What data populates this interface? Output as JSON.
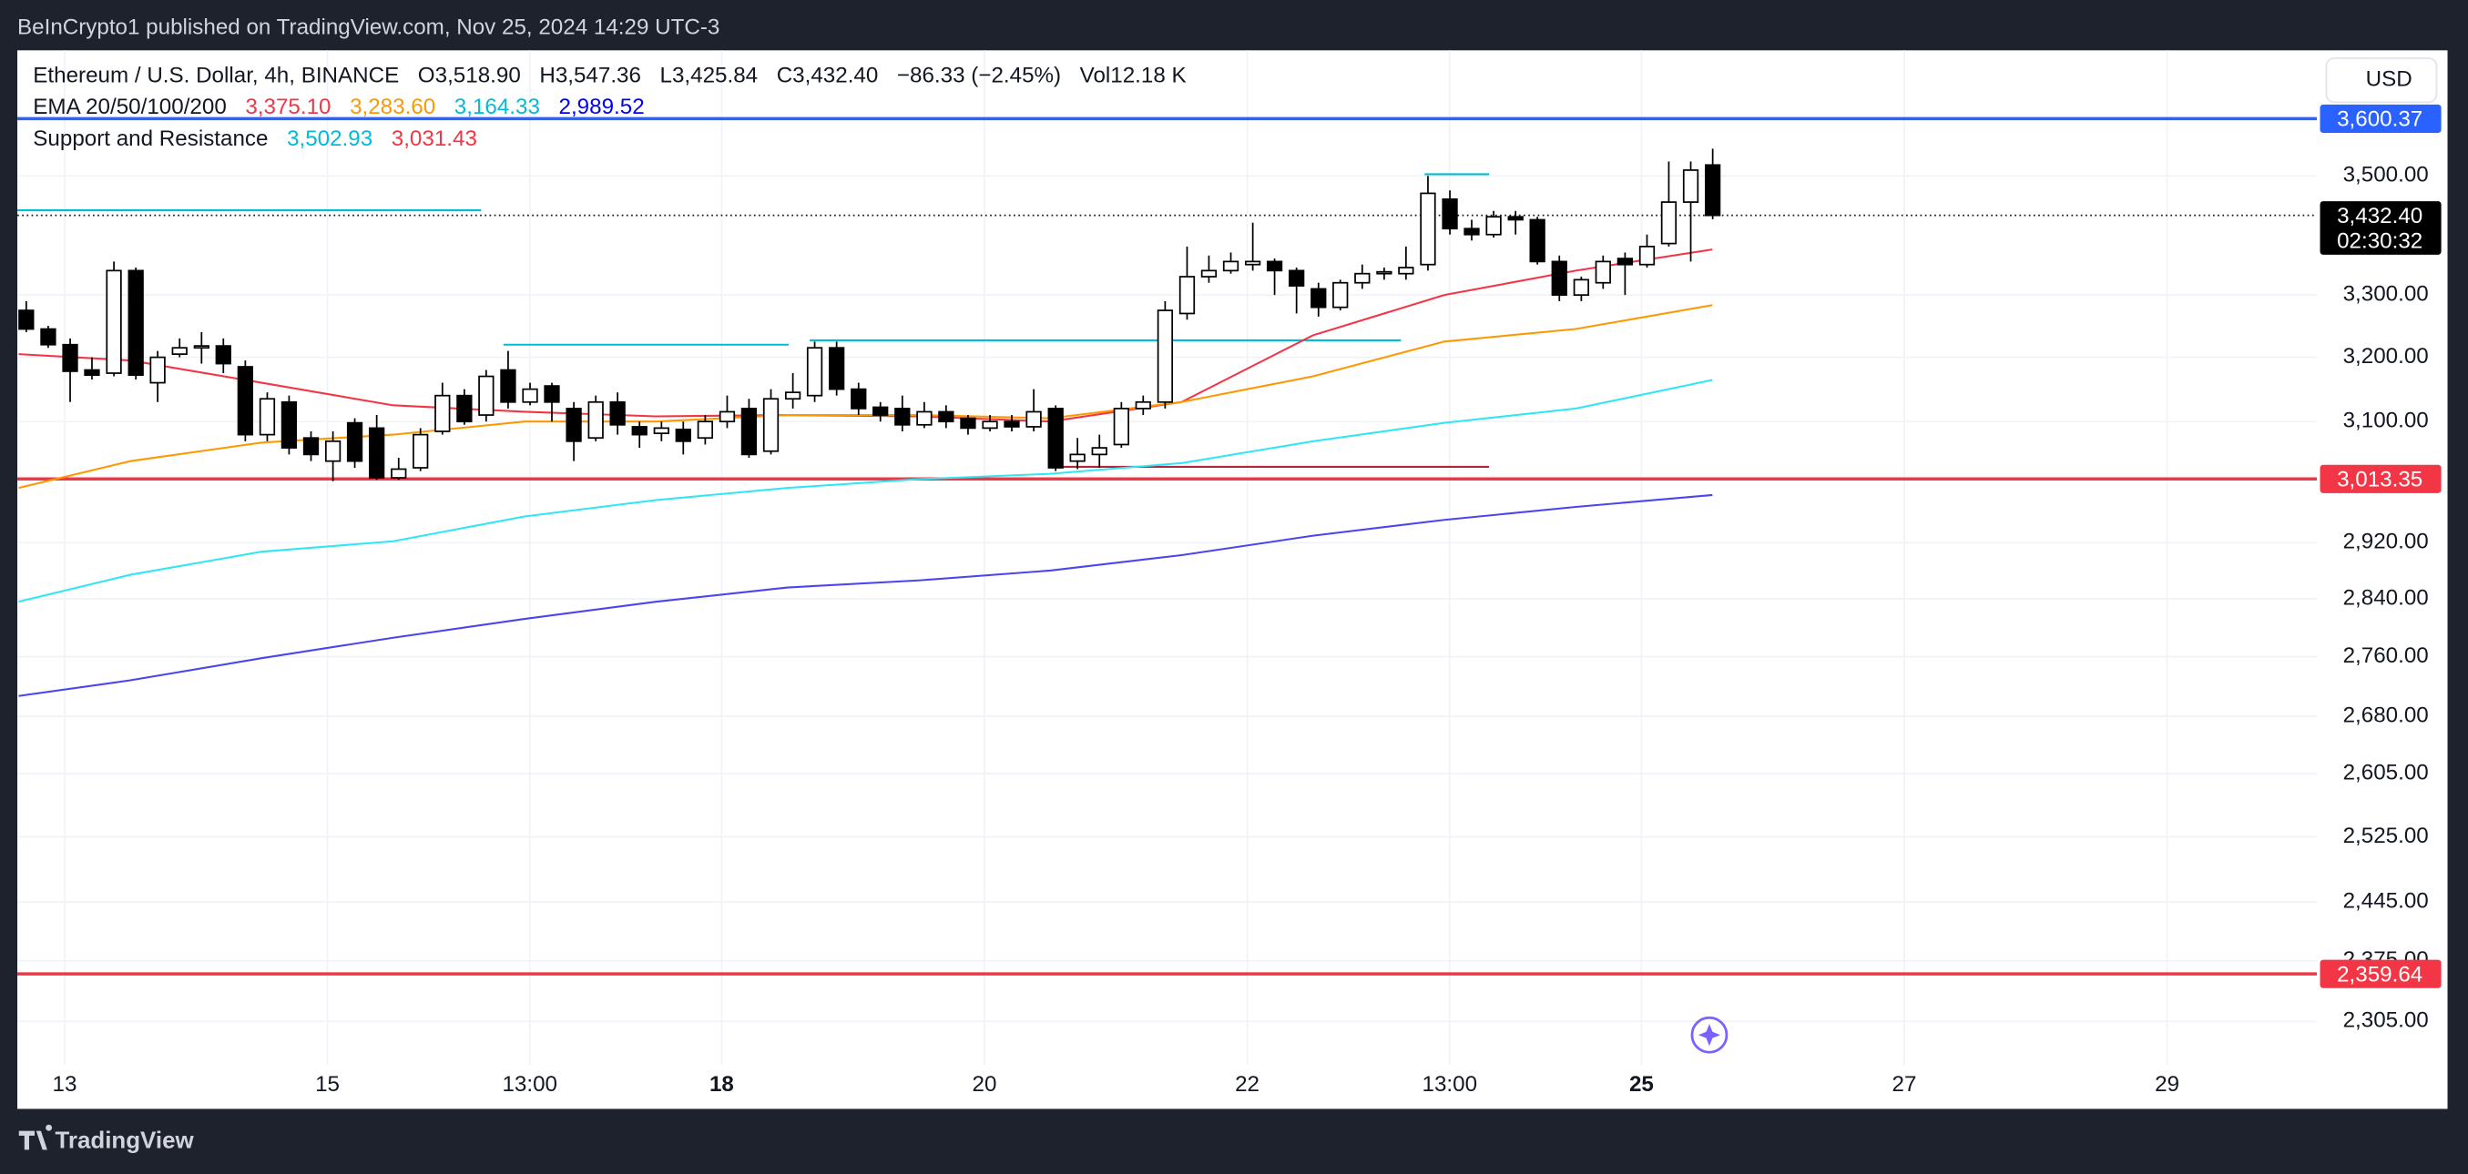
{
  "chart_data": {
    "type": "candlestick",
    "publisher_line": "BeInCrypto1 published on TradingView.com, Nov 25, 2024 14:29 UTC-3",
    "symbol": "Ethereum / U.S. Dollar, 4h, BINANCE",
    "ohlc_legend": [
      {
        "label": "O",
        "value": "3,518.90"
      },
      {
        "label": "H",
        "value": "3,547.36"
      },
      {
        "label": "L",
        "value": "3,425.84"
      },
      {
        "label": "C",
        "value": "3,432.40"
      }
    ],
    "change": "−86.33 (−2.45%)",
    "volume_label": "Vol",
    "volume": "12.18 K",
    "currency": "USD",
    "brand": "TradingView",
    "ema_legend": "EMA 20/50/100/200",
    "sr_legend": "Support and Resistance",
    "log_scale": true,
    "grid": true,
    "up_color": "#ffffff",
    "down_color": "#000000",
    "wick_color": "#000000",
    "xlim": [
      12.64,
      30.14
    ],
    "ylim": [
      2256,
      3724
    ],
    "xticks": [
      13,
      15,
      {
        "value": 16.54,
        "label": "13:00"
      },
      {
        "value": 18,
        "label": "18",
        "bold": true
      },
      20,
      22,
      {
        "value": 23.54,
        "label": "13:00"
      },
      {
        "value": 25,
        "label": "25",
        "bold": true
      },
      27,
      29
    ],
    "yticks": [
      {
        "value": 3500,
        "label": "3,500.00"
      },
      {
        "value": 3300,
        "label": "3,300.00"
      },
      {
        "value": 3200,
        "label": "3,200.00"
      },
      {
        "value": 3100,
        "label": "3,100.00"
      },
      {
        "value": 2920,
        "label": "2,920.00"
      },
      {
        "value": 2840,
        "label": "2,840.00"
      },
      {
        "value": 2760,
        "label": "2,760.00"
      },
      {
        "value": 2680,
        "label": "2,680.00"
      },
      {
        "value": 2605,
        "label": "2,605.00"
      },
      {
        "value": 2525,
        "label": "2,525.00"
      },
      {
        "value": 2445,
        "label": "2,445.00"
      },
      {
        "value": 2375,
        "label": "2,375.00"
      },
      {
        "value": 2305,
        "label": "2,305.00"
      }
    ],
    "candles": {
      "x": [
        12.708,
        12.875,
        13.042,
        13.208,
        13.375,
        13.542,
        13.708,
        13.875,
        14.042,
        14.208,
        14.375,
        14.542,
        14.708,
        14.875,
        15.042,
        15.208,
        15.375,
        15.542,
        15.708,
        15.875,
        16.042,
        16.208,
        16.375,
        16.542,
        16.708,
        16.875,
        17.042,
        17.208,
        17.375,
        17.542,
        17.708,
        17.875,
        18.042,
        18.208,
        18.375,
        18.542,
        18.708,
        18.875,
        19.042,
        19.208,
        19.375,
        19.542,
        19.708,
        19.875,
        20.042,
        20.208,
        20.375,
        20.542,
        20.708,
        20.875,
        21.042,
        21.208,
        21.375,
        21.542,
        21.708,
        21.875,
        22.042,
        22.208,
        22.375,
        22.542,
        22.708,
        22.875,
        23.042,
        23.208,
        23.375,
        23.542,
        23.708,
        23.875,
        24.042,
        24.208,
        24.375,
        24.542,
        24.708,
        24.875,
        25.042,
        25.208,
        25.375,
        25.542
      ],
      "open": [
        3275,
        3245,
        3220,
        3180,
        3175,
        3340,
        3160,
        3205,
        3215,
        3218,
        3185,
        3080,
        3130,
        3075,
        3040,
        3098,
        3090,
        3015,
        3030,
        3085,
        3140,
        3110,
        3180,
        3130,
        3155,
        3120,
        3075,
        3130,
        3092,
        3082,
        3088,
        3075,
        3100,
        3120,
        3055,
        3135,
        3140,
        3215,
        3150,
        3122,
        3120,
        3095,
        3115,
        3105,
        3090,
        3100,
        3092,
        3120,
        3040,
        3050,
        3065,
        3120,
        3130,
        3270,
        3330,
        3340,
        3350,
        3355,
        3340,
        3310,
        3280,
        3320,
        3335,
        3335,
        3350,
        3460,
        3410,
        3400,
        3430,
        3425,
        3355,
        3300,
        3320,
        3360,
        3350,
        3385,
        3455,
        3518.9
      ],
      "high": [
        3290,
        3250,
        3230,
        3200,
        3355,
        3345,
        3210,
        3230,
        3240,
        3230,
        3195,
        3145,
        3140,
        3085,
        3085,
        3105,
        3110,
        3045,
        3090,
        3160,
        3150,
        3180,
        3210,
        3160,
        3160,
        3130,
        3140,
        3145,
        3100,
        3100,
        3100,
        3110,
        3140,
        3135,
        3150,
        3175,
        3225,
        3225,
        3160,
        3130,
        3140,
        3130,
        3125,
        3110,
        3110,
        3110,
        3150,
        3125,
        3075,
        3080,
        3130,
        3140,
        3290,
        3380,
        3365,
        3370,
        3420,
        3360,
        3345,
        3320,
        3325,
        3350,
        3345,
        3380,
        3500,
        3475,
        3425,
        3440,
        3440,
        3430,
        3365,
        3330,
        3365,
        3370,
        3400,
        3525,
        3525,
        3547.36
      ],
      "low": [
        3240,
        3215,
        3130,
        3165,
        3170,
        3165,
        3130,
        3200,
        3190,
        3175,
        3070,
        3070,
        3050,
        3040,
        3010,
        3030,
        3012,
        3012,
        3025,
        3080,
        3095,
        3100,
        3120,
        3125,
        3100,
        3040,
        3070,
        3080,
        3060,
        3070,
        3050,
        3065,
        3090,
        3045,
        3050,
        3120,
        3130,
        3140,
        3110,
        3100,
        3085,
        3090,
        3090,
        3080,
        3085,
        3085,
        3085,
        3025,
        3028,
        3030,
        3060,
        3110,
        3120,
        3260,
        3320,
        3335,
        3340,
        3300,
        3270,
        3265,
        3275,
        3310,
        3325,
        3325,
        3340,
        3400,
        3390,
        3395,
        3400,
        3350,
        3290,
        3290,
        3310,
        3300,
        3345,
        3380,
        3355,
        3425.84
      ],
      "close": [
        3245,
        3220,
        3178,
        3172,
        3340,
        3172,
        3200,
        3215,
        3218,
        3190,
        3080,
        3135,
        3060,
        3050,
        3070,
        3040,
        3015,
        3028,
        3080,
        3140,
        3100,
        3170,
        3130,
        3150,
        3130,
        3070,
        3130,
        3095,
        3080,
        3090,
        3070,
        3100,
        3115,
        3050,
        3135,
        3145,
        3215,
        3150,
        3120,
        3110,
        3095,
        3115,
        3100,
        3090,
        3100,
        3092,
        3115,
        3030,
        3050,
        3060,
        3120,
        3130,
        3275,
        3330,
        3340,
        3355,
        3355,
        3340,
        3315,
        3280,
        3320,
        3335,
        3338,
        3345,
        3470,
        3410,
        3400,
        3430,
        3425,
        3355,
        3300,
        3325,
        3355,
        3350,
        3380,
        3455,
        3510,
        3432.4
      ]
    },
    "series": [
      {
        "color": "#f23645",
        "legend_value": "3,375.10",
        "x": [
          12.65,
          13.5,
          14.5,
          15.5,
          16.5,
          17.5,
          18.5,
          19.5,
          20.5,
          21.5,
          22.5,
          23.5,
          24.5,
          25.54
        ],
        "values": [
          3205,
          3195,
          3160,
          3125,
          3115,
          3108,
          3110,
          3108,
          3100,
          3130,
          3235,
          3300,
          3340,
          3375.1
        ]
      },
      {
        "color": "#ff9800",
        "legend_value": "3,283.60",
        "x": [
          12.65,
          13.5,
          14.5,
          15.5,
          16.5,
          17.5,
          18.5,
          19.5,
          20.5,
          21.5,
          22.5,
          23.5,
          24.5,
          25.54
        ],
        "values": [
          3000,
          3040,
          3068,
          3080,
          3100,
          3100,
          3110,
          3110,
          3105,
          3130,
          3170,
          3225,
          3245,
          3283.6
        ]
      },
      {
        "color": "#2ee6f5",
        "legend_value": "3,164.33",
        "x": [
          12.65,
          13.5,
          14.5,
          15.5,
          16.5,
          17.5,
          18.5,
          19.5,
          20.5,
          21.5,
          22.5,
          23.5,
          24.5,
          25.54
        ],
        "values": [
          2836,
          2874,
          2907,
          2922,
          2958,
          2982,
          3000,
          3013,
          3021,
          3037,
          3070,
          3098,
          3120,
          3164.33
        ]
      },
      {
        "color": "#4b45ee",
        "legend_value": "2,989.52",
        "x": [
          12.65,
          13.5,
          14.5,
          15.5,
          16.5,
          17.5,
          18.5,
          19.5,
          20.5,
          21.5,
          22.5,
          23.5,
          24.5,
          25.54
        ],
        "values": [
          2707,
          2728,
          2758,
          2786,
          2812,
          2836,
          2856,
          2866,
          2880,
          2902,
          2930,
          2953,
          2972,
          2989.52
        ]
      }
    ],
    "legend_colors": [
      "#f23645",
      "#ff9800",
      "#00bcd4",
      "#0000ff"
    ],
    "levels": [
      {
        "value": 3502.93,
        "label": "3,502.93",
        "color": "#00bcd4",
        "x": [
          23.35,
          23.84
        ]
      },
      {
        "value": 3031.43,
        "label": "3,031.43",
        "color": "#b2243c",
        "x": [
          20.51,
          23.84
        ]
      },
      {
        "value": 3441,
        "color": "#00bcd4",
        "x": [
          12.64,
          16.17
        ]
      },
      {
        "value": 3220,
        "color": "#00bcd4",
        "x": [
          16.34,
          18.51
        ]
      },
      {
        "value": 3227,
        "color": "#00bcd4",
        "x": [
          18.67,
          23.17
        ]
      }
    ],
    "sr_legend_colors": [
      "#00bcd4",
      "#f23645"
    ],
    "price_lines": [
      {
        "value": 3600.37,
        "label": "3,600.37",
        "color": "#2962ff"
      },
      {
        "value": 3013.35,
        "label": "3,013.35",
        "color": "#f23645"
      },
      {
        "value": 2359.64,
        "label": "2,359.64",
        "color": "#f23645"
      }
    ],
    "last_price": {
      "value": 3432.4,
      "label": "3,432.40",
      "countdown": "02:30:32"
    }
  }
}
